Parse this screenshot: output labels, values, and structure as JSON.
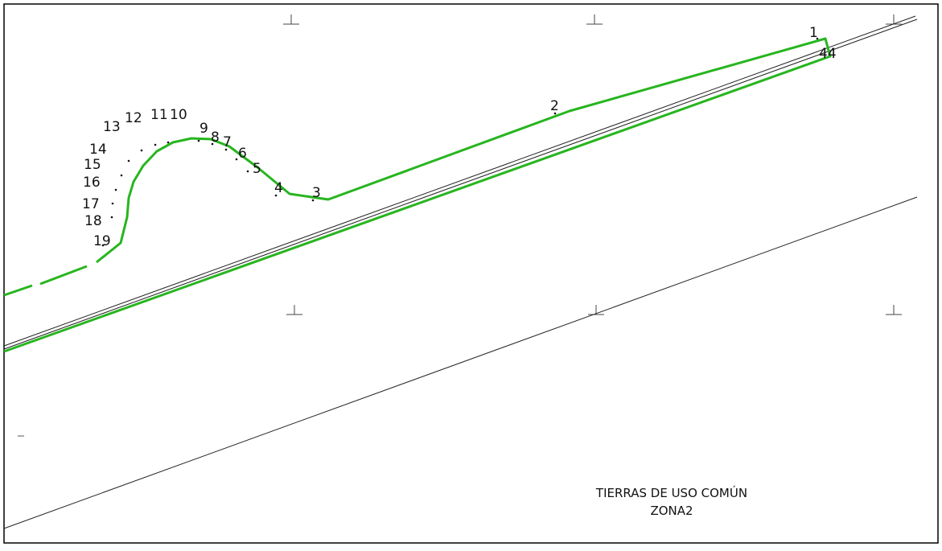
{
  "map": {
    "area_label_line1": "TIERRAS DE USO COMÚN",
    "area_label_line2": "ZONA2",
    "colors": {
      "boundary": "#27b51f",
      "reference_lines": "#222222",
      "frame": "#000000",
      "background": "#ffffff"
    },
    "vertex_labels": [
      "1",
      "44",
      "2",
      "3",
      "4",
      "5",
      "6",
      "7",
      "8",
      "9",
      "10",
      "11",
      "12",
      "13",
      "14",
      "15",
      "16",
      "17",
      "18",
      "19"
    ]
  }
}
